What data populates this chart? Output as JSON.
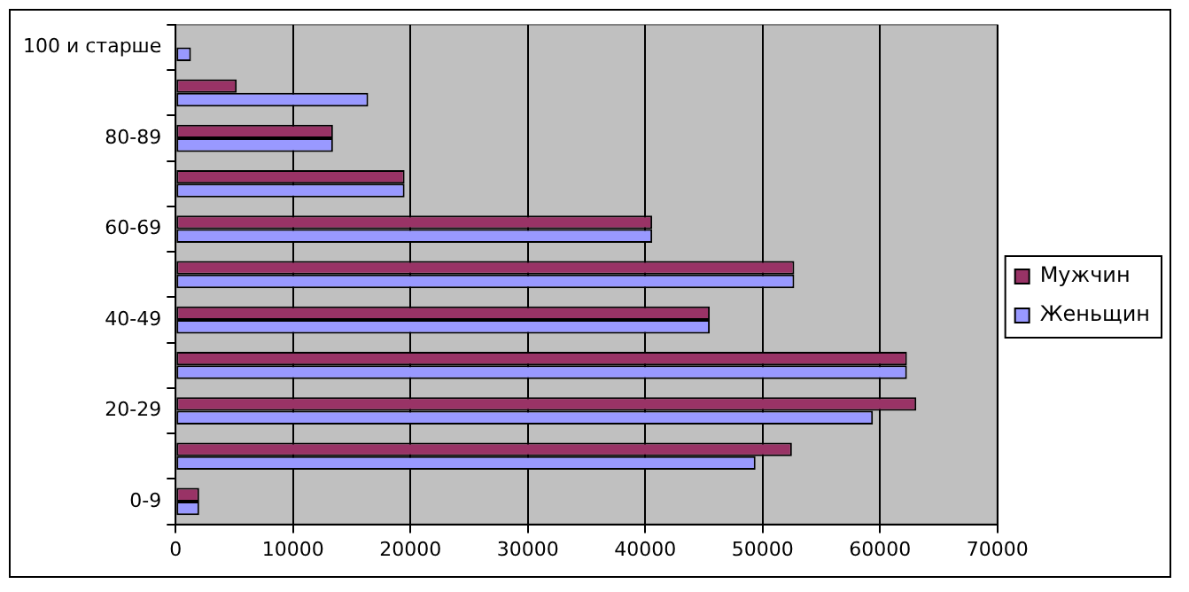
{
  "chart_data": {
    "type": "bar",
    "orientation": "horizontal",
    "categories": [
      "100 и старше",
      null,
      "80-89",
      null,
      "60-69",
      null,
      "40-49",
      null,
      "20-29",
      null,
      "0-9"
    ],
    "series": [
      {
        "name": "Мужчин",
        "color": "#993366",
        "values": [
          0,
          5200,
          13400,
          19500,
          40600,
          52700,
          45500,
          62300,
          63100,
          52500,
          2000
        ]
      },
      {
        "name": "Женьщин",
        "color": "#9999ff",
        "values": [
          1300,
          16400,
          13400,
          19500,
          40600,
          52700,
          45500,
          62300,
          59400,
          49400,
          2000
        ]
      }
    ],
    "xlim": [
      0,
      70000
    ],
    "xticks": [
      0,
      10000,
      20000,
      30000,
      40000,
      50000,
      60000,
      70000
    ],
    "grid": "x",
    "legend": "right"
  }
}
